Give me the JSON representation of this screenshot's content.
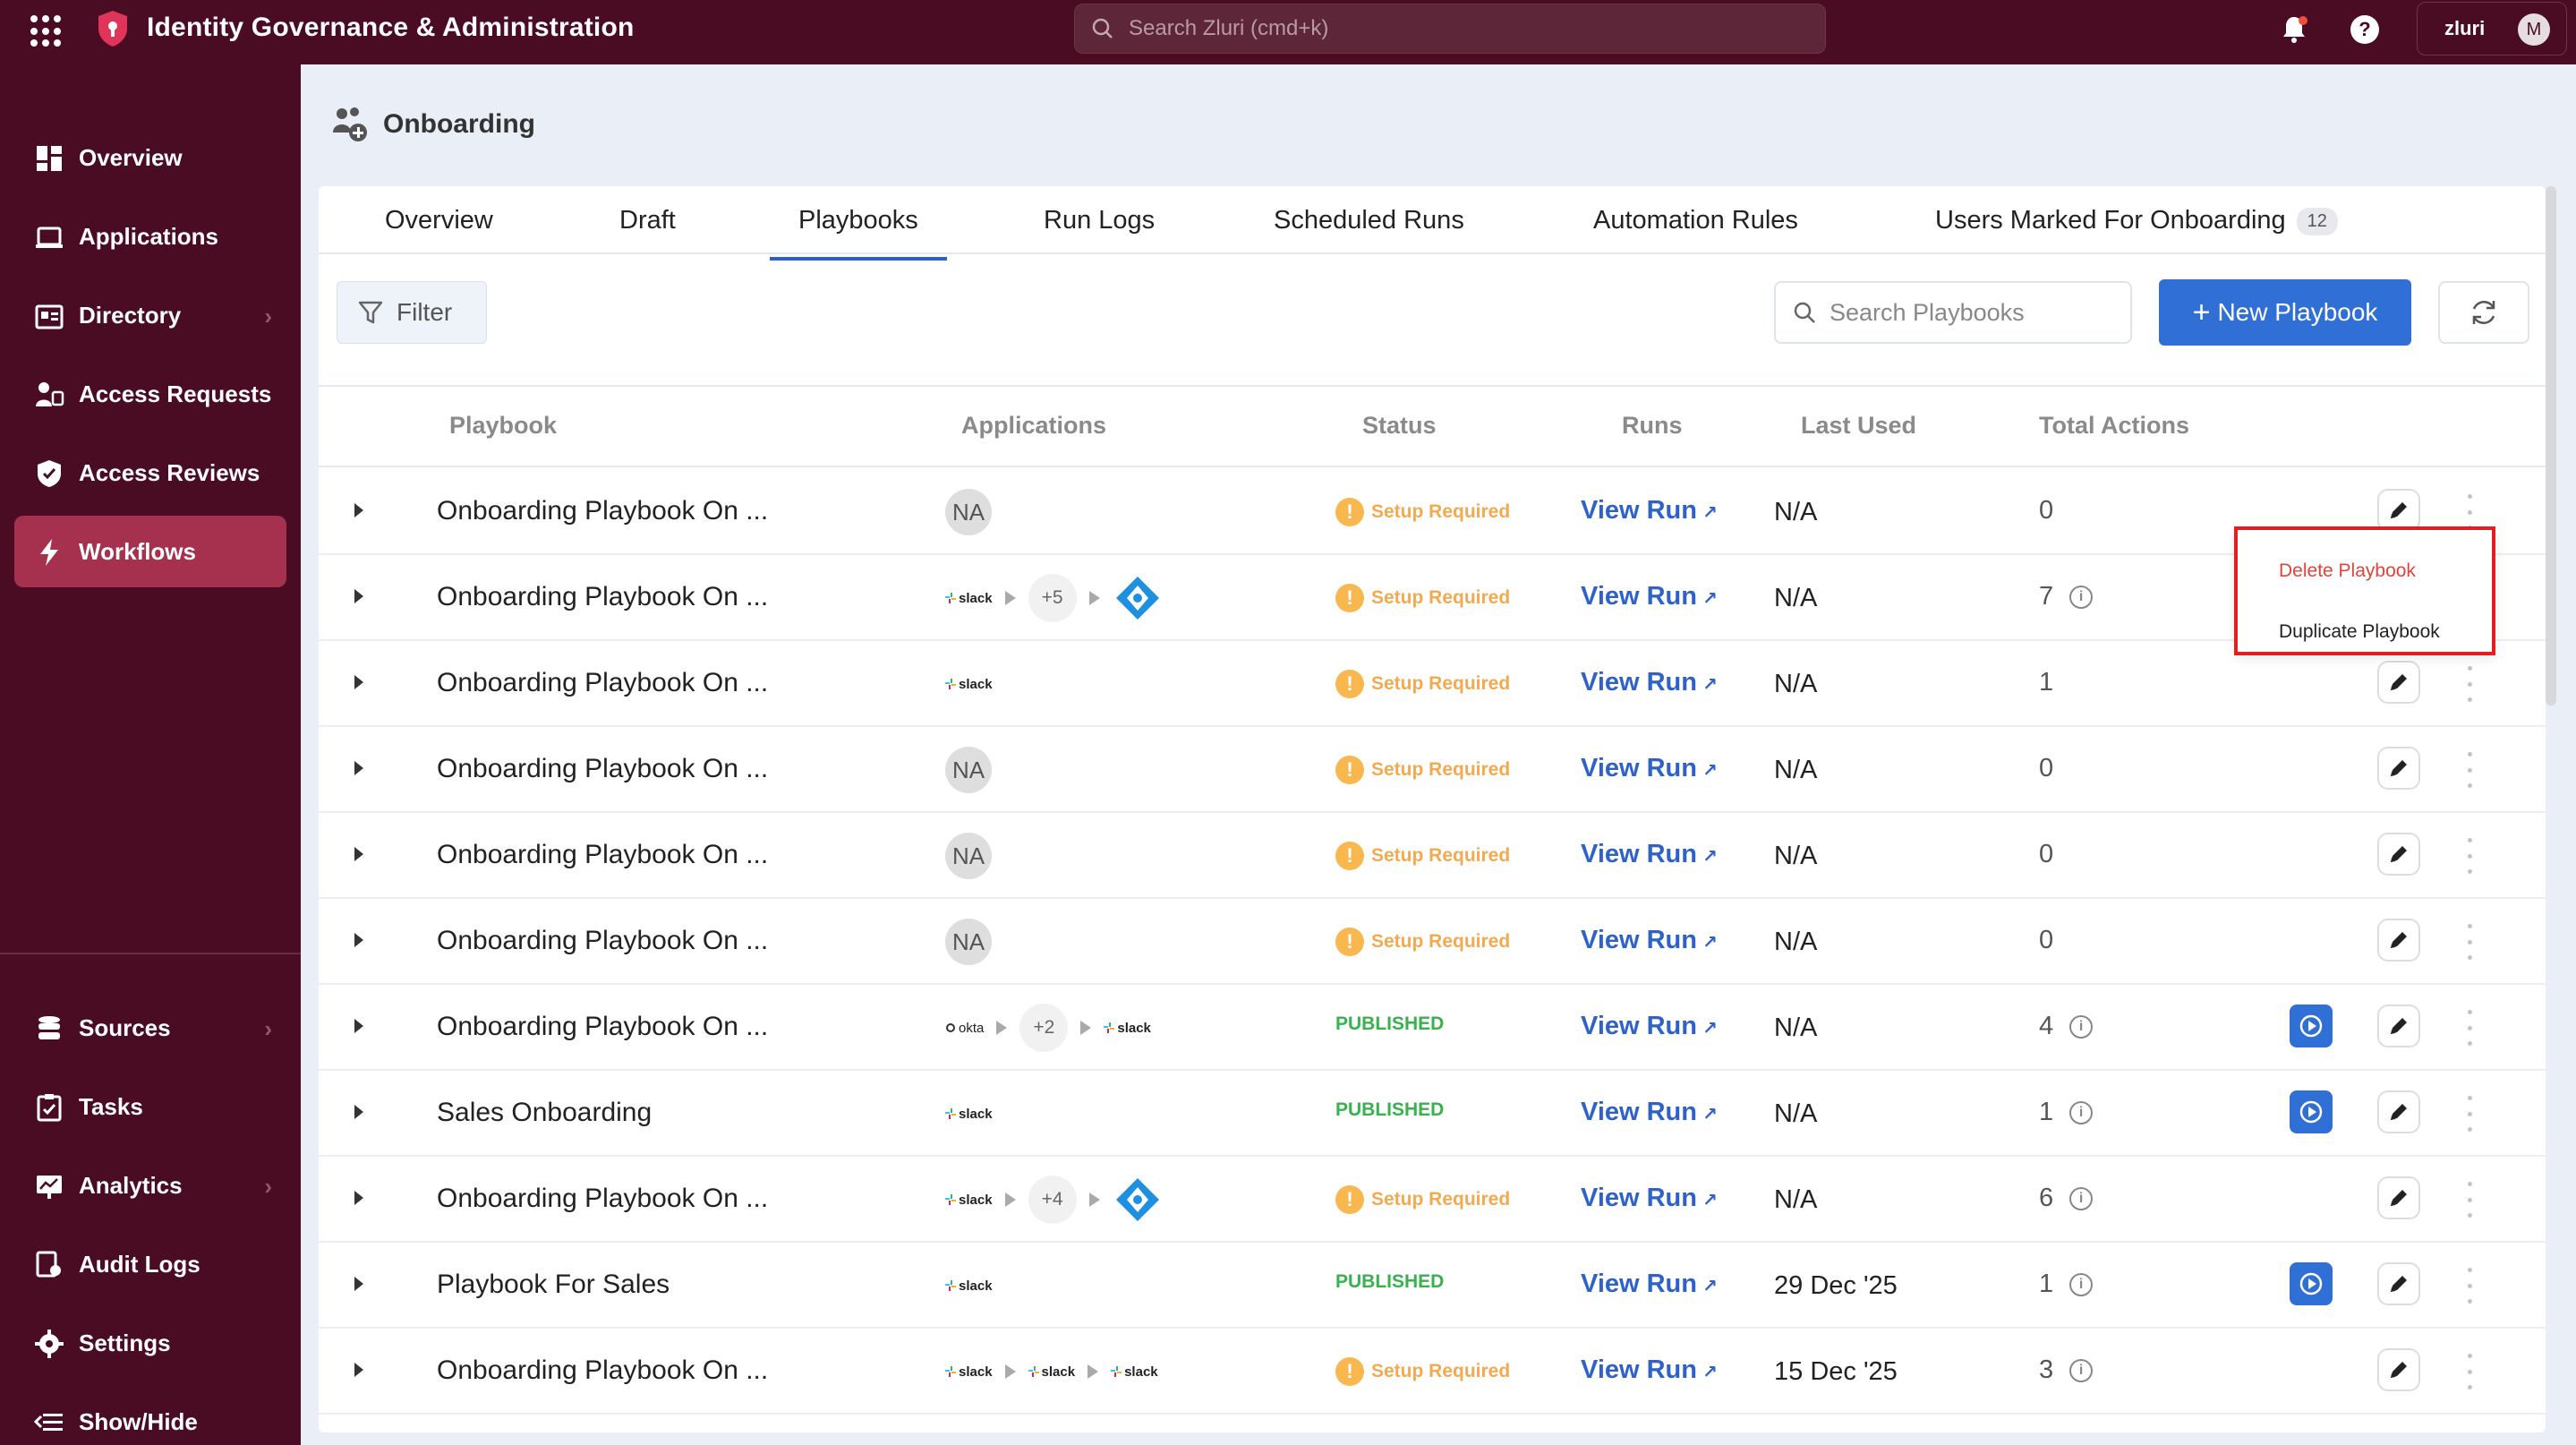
{
  "topbar": {
    "app_title": "Identity Governance & Administration",
    "search_placeholder": "Search Zluri (cmd+k)",
    "org_name": "zluri",
    "avatar_initial": "M"
  },
  "sidebar": {
    "items": [
      {
        "label": "Overview",
        "icon": "dashboard-icon",
        "has_chevron": false
      },
      {
        "label": "Applications",
        "icon": "applications-icon",
        "has_chevron": false
      },
      {
        "label": "Directory",
        "icon": "directory-icon",
        "has_chevron": true
      },
      {
        "label": "Access Requests",
        "icon": "access-requests-icon",
        "has_chevron": false
      },
      {
        "label": "Access Reviews",
        "icon": "shield-check-icon",
        "has_chevron": false
      },
      {
        "label": "Workflows",
        "icon": "lightning-icon",
        "has_chevron": false,
        "active": true
      },
      {
        "label": "Sources",
        "icon": "database-icon",
        "has_chevron": true
      },
      {
        "label": "Tasks",
        "icon": "task-icon",
        "has_chevron": false
      },
      {
        "label": "Analytics",
        "icon": "analytics-icon",
        "has_chevron": true
      },
      {
        "label": "Audit Logs",
        "icon": "audit-logs-icon",
        "has_chevron": false
      },
      {
        "label": "Settings",
        "icon": "gear-icon",
        "has_chevron": false
      },
      {
        "label": "Show/Hide",
        "icon": "collapse-icon",
        "has_chevron": false
      }
    ]
  },
  "page": {
    "title": "Onboarding"
  },
  "tabs": [
    {
      "label": "Overview"
    },
    {
      "label": "Draft"
    },
    {
      "label": "Playbooks",
      "active": true
    },
    {
      "label": "Run Logs"
    },
    {
      "label": "Scheduled Runs"
    },
    {
      "label": "Automation Rules"
    },
    {
      "label": "Users Marked For Onboarding",
      "badge": "12"
    }
  ],
  "toolbar": {
    "filter_label": "Filter",
    "search_placeholder": "Search Playbooks",
    "new_button_label": "New Playbook"
  },
  "table": {
    "headers": [
      "Playbook",
      "Applications",
      "Status",
      "Runs",
      "Last Used",
      "Total Actions"
    ],
    "rows": [
      {
        "name": "Onboarding Playbook On ...",
        "apps": "na",
        "status": "Setup Required",
        "runs": "View Run",
        "last_used": "N/A",
        "total_actions": "0",
        "info": false,
        "play": false
      },
      {
        "name": "Onboarding Playbook On ...",
        "apps": "slack+5+azure",
        "status": "Setup Required",
        "runs": "View Run",
        "last_used": "N/A",
        "total_actions": "7",
        "info": true,
        "play": false
      },
      {
        "name": "Onboarding Playbook On ...",
        "apps": "slack",
        "status": "Setup Required",
        "runs": "View Run",
        "last_used": "N/A",
        "total_actions": "1",
        "info": false,
        "play": false
      },
      {
        "name": "Onboarding Playbook On ...",
        "apps": "na",
        "status": "Setup Required",
        "runs": "View Run",
        "last_used": "N/A",
        "total_actions": "0",
        "info": false,
        "play": false
      },
      {
        "name": "Onboarding Playbook On ...",
        "apps": "na",
        "status": "Setup Required",
        "runs": "View Run",
        "last_used": "N/A",
        "total_actions": "0",
        "info": false,
        "play": false
      },
      {
        "name": "Onboarding Playbook On ...",
        "apps": "na",
        "status": "Setup Required",
        "runs": "View Run",
        "last_used": "N/A",
        "total_actions": "0",
        "info": false,
        "play": false
      },
      {
        "name": "Onboarding Playbook On ...",
        "apps": "okta+2+slack",
        "status": "PUBLISHED",
        "runs": "View Run",
        "last_used": "N/A",
        "total_actions": "4",
        "info": true,
        "play": true
      },
      {
        "name": "Sales Onboarding",
        "apps": "slack",
        "status": "PUBLISHED",
        "runs": "View Run",
        "last_used": "N/A",
        "total_actions": "1",
        "info": true,
        "play": true
      },
      {
        "name": "Onboarding Playbook On ...",
        "apps": "slack+4+azure",
        "status": "Setup Required",
        "runs": "View Run",
        "last_used": "N/A",
        "total_actions": "6",
        "info": true,
        "play": false
      },
      {
        "name": "Playbook For Sales",
        "apps": "slack",
        "status": "PUBLISHED",
        "runs": "View Run",
        "last_used": "29 Dec '25",
        "total_actions": "1",
        "info": true,
        "play": true
      },
      {
        "name": "Onboarding Playbook On ...",
        "apps": "slack-slack-slack",
        "status": "Setup Required",
        "runs": "View Run",
        "last_used": "15 Dec '25",
        "total_actions": "3",
        "info": true,
        "play": false
      }
    ]
  },
  "app_labels": {
    "na": "NA",
    "slack": "slack",
    "okta": "okta",
    "plus5": "+5",
    "plus4": "+4",
    "plus2": "+2"
  },
  "popup": {
    "delete_label": "Delete Playbook",
    "duplicate_label": "Duplicate Playbook"
  },
  "colors": {
    "brand": "#4a0c23",
    "active_nav": "#a5314f",
    "primary": "#2f6fd6",
    "setup_required": "#f2a950",
    "published": "#37b24d",
    "delete": "#e0443a"
  }
}
